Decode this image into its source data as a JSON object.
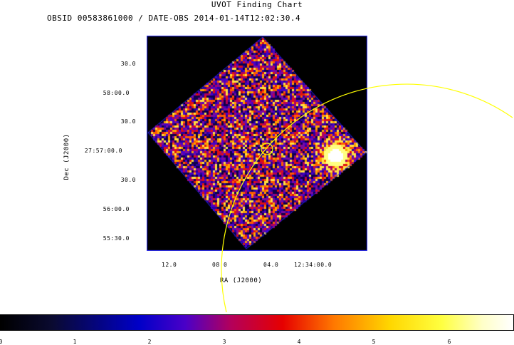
{
  "title": "UVOT Finding Chart",
  "subtitle": "OBSID 00583861000 / DATE-OBS 2014-01-14T12:02:30.4",
  "axes": {
    "x_label": "RA (J2000)",
    "y_label": "Dec (J2000)",
    "x_ticks": [
      "12.0",
      "08.0",
      "04.0",
      "12:34:00.0"
    ],
    "y_ticks": [
      "30.0",
      "58:00.0",
      "30.0",
      "27:57:00.0",
      "30.0",
      "56:00.0",
      "55:30.0"
    ]
  },
  "colorbar": {
    "ticks": [
      "0",
      "1",
      "2",
      "3",
      "4",
      "5",
      "6"
    ]
  },
  "colors": {
    "overlay_circle": "#ffff00",
    "frame": "#0000ff",
    "background": "#000000"
  }
}
